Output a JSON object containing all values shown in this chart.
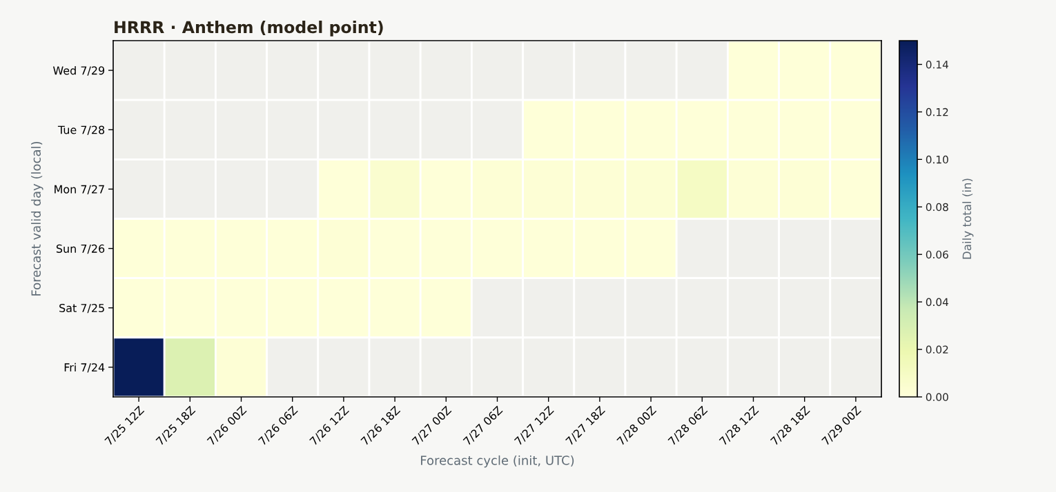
{
  "chart_data": {
    "type": "heatmap",
    "title": "HRRR · Anthem (model point)",
    "xlabel": "Forecast cycle (init, UTC)",
    "ylabel": "Forecast valid day (local)",
    "clabel": "Daily total (in)",
    "categories": [
      "7/25 12Z",
      "7/25 18Z",
      "7/26 00Z",
      "7/26 06Z",
      "7/26 12Z",
      "7/26 18Z",
      "7/27 00Z",
      "7/27 06Z",
      "7/27 12Z",
      "7/27 18Z",
      "7/28 00Z",
      "7/28 06Z",
      "7/28 12Z",
      "7/28 18Z",
      "7/29 00Z"
    ],
    "y_categories": [
      "Wed 7/29",
      "Tue 7/28",
      "Mon 7/27",
      "Sun 7/26",
      "Sat 7/25",
      "Fri 7/24"
    ],
    "cells": [
      [
        null,
        null,
        null,
        null,
        null,
        null,
        null,
        null,
        null,
        null,
        null,
        null,
        0.001,
        0.001,
        0.001
      ],
      [
        null,
        null,
        null,
        null,
        null,
        null,
        null,
        null,
        0.001,
        0.001,
        0.001,
        0.001,
        0.001,
        0.001,
        0.001
      ],
      [
        null,
        null,
        null,
        null,
        0.001,
        0.005,
        0.001,
        0.002,
        0.002,
        0.002,
        0.003,
        0.01,
        0.002,
        0.002,
        0.001
      ],
      [
        0.001,
        0.001,
        0.001,
        0.001,
        0.002,
        0.001,
        0.001,
        0.001,
        0.001,
        0.001,
        0.001,
        null,
        null,
        null,
        null
      ],
      [
        0.001,
        0.001,
        0.001,
        0.001,
        0.001,
        0.001,
        0.001,
        null,
        null,
        null,
        null,
        null,
        null,
        null,
        null
      ],
      [
        0.15,
        0.027,
        0.002,
        null,
        null,
        null,
        null,
        null,
        null,
        null,
        null,
        null,
        null,
        null,
        null
      ]
    ],
    "clim": [
      0,
      0.15
    ],
    "cticks": [
      {
        "value": 0,
        "label": "0.00"
      },
      {
        "value": 0.02,
        "label": "0.02"
      },
      {
        "value": 0.04,
        "label": "0.04"
      },
      {
        "value": 0.06,
        "label": "0.06"
      },
      {
        "value": 0.08,
        "label": "0.08"
      },
      {
        "value": 0.1,
        "label": "0.10"
      },
      {
        "value": 0.12,
        "label": "0.12"
      },
      {
        "value": 0.14,
        "label": "0.14"
      }
    ]
  }
}
